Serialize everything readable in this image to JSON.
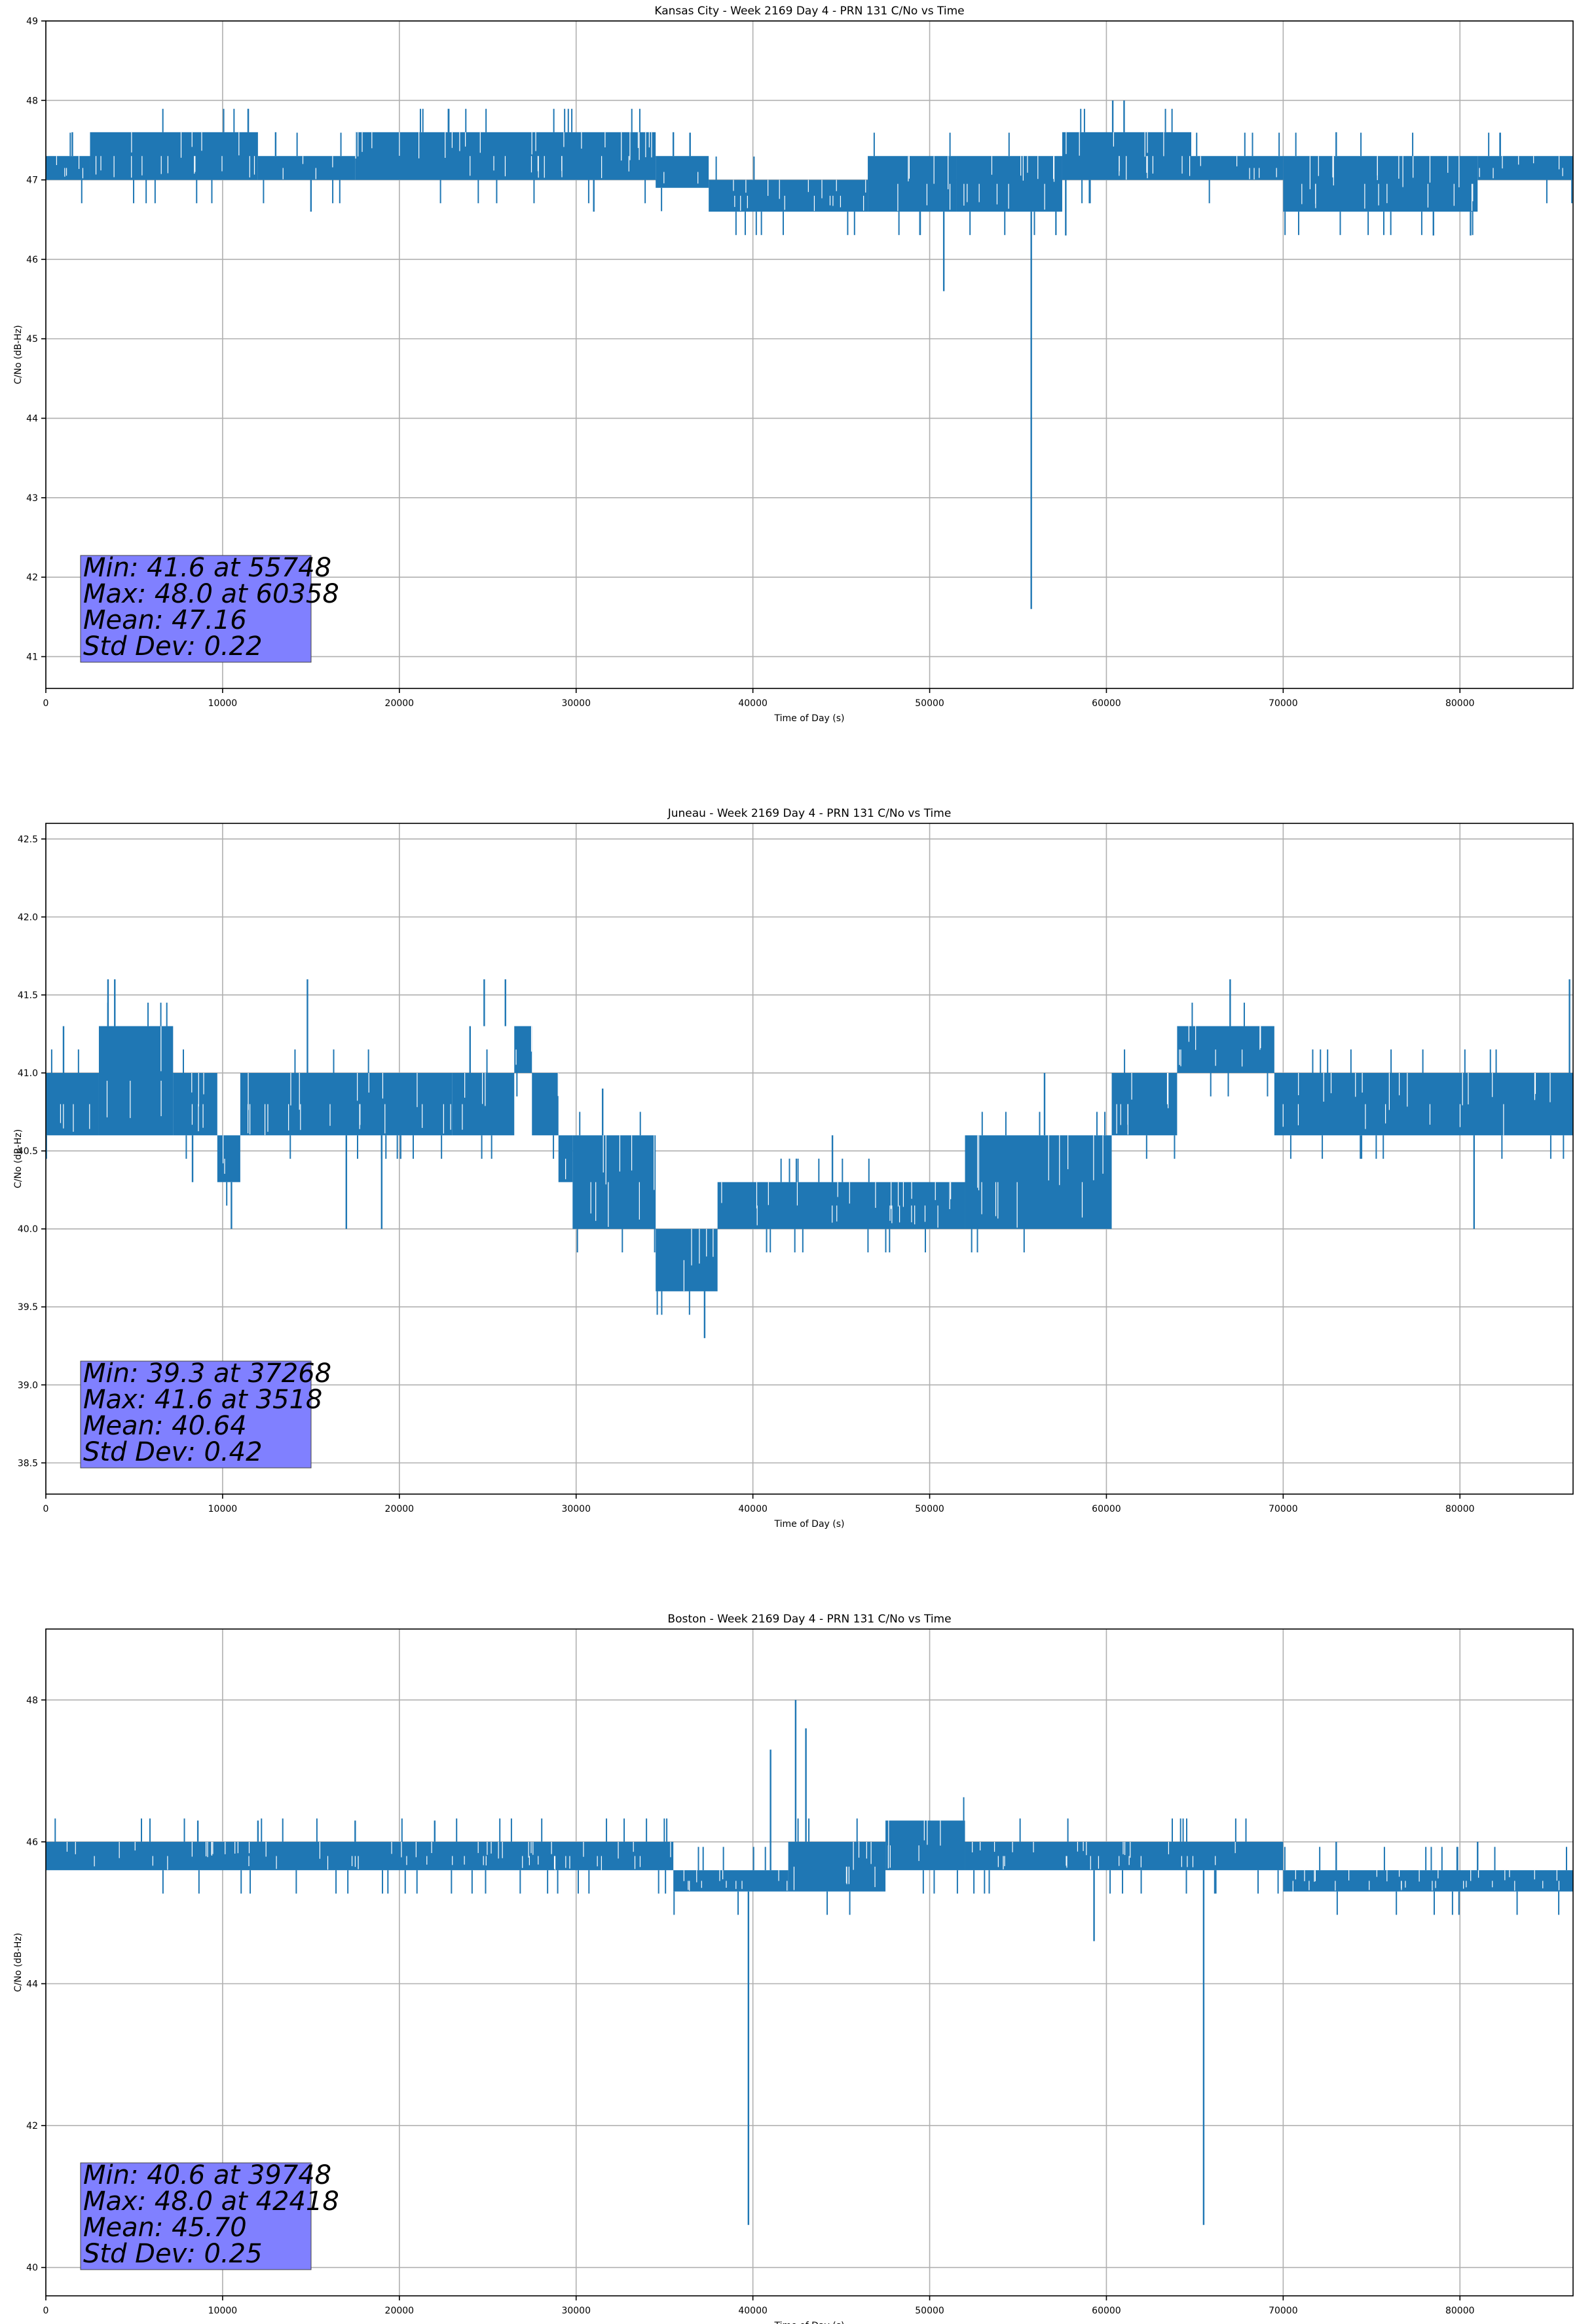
{
  "chart_data": [
    {
      "type": "line",
      "title": "Kansas City - Week 2169 Day 4 - PRN 131 C/No vs Time",
      "xlabel": "Time of Day (s)",
      "ylabel": "C/No (dB-Hz)",
      "xlim": [
        0,
        86400
      ],
      "ylim": [
        40.6,
        49
      ],
      "xticks": [
        0,
        10000,
        20000,
        30000,
        40000,
        50000,
        60000,
        70000,
        80000
      ],
      "yticks": [
        41,
        42,
        43,
        44,
        45,
        46,
        47,
        48,
        49
      ],
      "grid": true,
      "series_color": "#1f77b4",
      "stats_lines": [
        "Min: 41.6 at 55748",
        "Max: 48.0 at 60358",
        "Mean: 47.16",
        "Std Dev: 0.22"
      ],
      "stats_placement": "bottom-left",
      "bands": [
        {
          "x": [
            0,
            2500
          ],
          "range": [
            47.0,
            47.3
          ],
          "noise": [
            [
              1500,
              47.6
            ]
          ]
        },
        {
          "x": [
            2500,
            12000
          ],
          "range": [
            47.0,
            47.6
          ]
        },
        {
          "x": [
            12000,
            17500
          ],
          "range": [
            47.0,
            47.3
          ],
          "noise": [
            [
              15000,
              46.6
            ],
            [
              13000,
              47.6
            ]
          ]
        },
        {
          "x": [
            17500,
            34500
          ],
          "range": [
            47.0,
            47.6
          ],
          "noise": [
            [
              31000,
              46.6
            ]
          ]
        },
        {
          "x": [
            34500,
            37500
          ],
          "range": [
            46.9,
            47.3
          ],
          "noise": [
            [
              35500,
              47.6
            ]
          ]
        },
        {
          "x": [
            37500,
            46500
          ],
          "range": [
            46.6,
            47.0
          ]
        },
        {
          "x": [
            46500,
            51500
          ],
          "range": [
            46.6,
            47.3
          ],
          "noise": [
            [
              50800,
              45.6
            ]
          ]
        },
        {
          "x": [
            51500,
            57500
          ],
          "range": [
            46.6,
            47.3
          ],
          "noise": [
            [
              55748,
              41.6
            ]
          ]
        },
        {
          "x": [
            57500,
            64800
          ],
          "range": [
            47.0,
            47.6
          ],
          "noise": [
            [
              60358,
              48.0
            ],
            [
              61000,
              48.0
            ],
            [
              57700,
              46.3
            ]
          ]
        },
        {
          "x": [
            64800,
            70000
          ],
          "range": [
            47.0,
            47.3
          ]
        },
        {
          "x": [
            70000,
            81000
          ],
          "range": [
            46.6,
            47.3
          ],
          "noise": [
            [
              78500,
              46.3
            ],
            [
              80600,
              46.3
            ],
            [
              73000,
              47.6
            ]
          ]
        },
        {
          "x": [
            81000,
            86400
          ],
          "range": [
            47.0,
            47.3
          ]
        }
      ]
    },
    {
      "type": "line",
      "title": "Juneau - Week 2169 Day 4 - PRN 131 C/No vs Time",
      "xlabel": "Time of Day (s)",
      "ylabel": "C/No (dB-Hz)",
      "xlim": [
        0,
        86400
      ],
      "ylim": [
        38.3,
        42.6
      ],
      "xticks": [
        0,
        10000,
        20000,
        30000,
        40000,
        50000,
        60000,
        70000,
        80000
      ],
      "yticks": [
        38.5,
        39.0,
        39.5,
        40.0,
        40.5,
        41.0,
        41.5,
        42.0,
        42.5
      ],
      "grid": true,
      "series_color": "#1f77b4",
      "stats_lines": [
        "Min: 39.3 at 37268",
        "Max: 41.6 at 3518",
        "Mean: 40.64",
        "Std Dev: 0.42"
      ],
      "stats_placement": "bottom-left",
      "bands": [
        {
          "x": [
            0,
            3000
          ],
          "range": [
            40.6,
            41.0
          ],
          "noise": [
            [
              1000,
              41.3
            ]
          ]
        },
        {
          "x": [
            3000,
            7200
          ],
          "range": [
            40.6,
            41.3
          ],
          "noise": [
            [
              3518,
              41.6
            ],
            [
              3900,
              41.6
            ]
          ]
        },
        {
          "x": [
            7200,
            9700
          ],
          "range": [
            40.6,
            41.0
          ],
          "noise": [
            [
              8300,
              40.3
            ]
          ]
        },
        {
          "x": [
            9700,
            11000
          ],
          "range": [
            40.3,
            40.6
          ],
          "noise": [
            [
              10500,
              40.0
            ]
          ]
        },
        {
          "x": [
            11000,
            23000
          ],
          "range": [
            40.6,
            41.0
          ],
          "noise": [
            [
              14800,
              41.6
            ],
            [
              17000,
              40.0
            ],
            [
              19000,
              40.0
            ]
          ]
        },
        {
          "x": [
            23000,
            26500
          ],
          "range": [
            40.6,
            41.0
          ],
          "noise": [
            [
              24000,
              41.3
            ]
          ]
        },
        {
          "x": [
            26500,
            27500
          ],
          "range": [
            41.0,
            41.3
          ],
          "noise": [
            [
              24800,
              41.6
            ],
            [
              26000,
              41.6
            ]
          ]
        },
        {
          "x": [
            27500,
            29000
          ],
          "range": [
            40.6,
            41.0
          ]
        },
        {
          "x": [
            29000,
            29800
          ],
          "range": [
            40.3,
            40.6
          ]
        },
        {
          "x": [
            29800,
            34500
          ],
          "range": [
            40.0,
            40.6
          ],
          "noise": [
            [
              31500,
              40.9
            ]
          ]
        },
        {
          "x": [
            34500,
            38000
          ],
          "range": [
            39.6,
            40.0
          ],
          "noise": [
            [
              37268,
              39.3
            ]
          ]
        },
        {
          "x": [
            38000,
            52000
          ],
          "range": [
            40.0,
            40.3
          ],
          "noise": [
            [
              44500,
              40.6
            ]
          ]
        },
        {
          "x": [
            52000,
            60300
          ],
          "range": [
            40.0,
            40.6
          ],
          "noise": [
            [
              56500,
              41.0
            ]
          ]
        },
        {
          "x": [
            60300,
            64000
          ],
          "range": [
            40.6,
            41.0
          ]
        },
        {
          "x": [
            64000,
            69500
          ],
          "range": [
            41.0,
            41.3
          ],
          "noise": [
            [
              67000,
              41.6
            ]
          ]
        },
        {
          "x": [
            69500,
            86400
          ],
          "range": [
            40.6,
            41.0
          ],
          "noise": [
            [
              80800,
              40.0
            ],
            [
              86200,
              41.6
            ]
          ]
        }
      ]
    },
    {
      "type": "line",
      "title": "Boston - Week 2169 Day 4 - PRN 131 C/No vs Time",
      "xlabel": "Time of Day (s)",
      "ylabel": "C/No (dB-Hz)",
      "xlim": [
        0,
        86400
      ],
      "ylim": [
        39.6,
        49
      ],
      "xticks": [
        0,
        10000,
        20000,
        30000,
        40000,
        50000,
        60000,
        70000,
        80000
      ],
      "yticks": [
        40,
        42,
        44,
        46,
        48
      ],
      "grid": true,
      "series_color": "#1f77b4",
      "stats_lines": [
        "Min: 40.6 at 39748",
        "Max: 48.0 at 42418",
        "Mean: 45.70",
        "Std Dev: 0.25"
      ],
      "stats_placement": "bottom-left",
      "bands": [
        {
          "x": [
            0,
            35500
          ],
          "range": [
            45.6,
            46.0
          ],
          "noise": [
            [
              8600,
              46.3
            ],
            [
              12000,
              46.3
            ],
            [
              17500,
              46.3
            ],
            [
              22000,
              46.3
            ]
          ]
        },
        {
          "x": [
            35500,
            42000
          ],
          "range": [
            45.3,
            45.6
          ],
          "noise": [
            [
              39748,
              40.6
            ],
            [
              41000,
              47.3
            ]
          ]
        },
        {
          "x": [
            42000,
            47500
          ],
          "range": [
            45.3,
            46.0
          ],
          "noise": [
            [
              42418,
              48.0
            ],
            [
              43000,
              47.6
            ]
          ]
        },
        {
          "x": [
            47500,
            52000
          ],
          "range": [
            45.6,
            46.3
          ]
        },
        {
          "x": [
            52000,
            70000
          ],
          "range": [
            45.6,
            46.0
          ],
          "noise": [
            [
              59300,
              44.6
            ],
            [
              65500,
              40.6
            ]
          ]
        },
        {
          "x": [
            70000,
            86400
          ],
          "range": [
            45.3,
            45.6
          ],
          "noise": [
            [
              73000,
              46.0
            ],
            [
              81000,
              46.0
            ]
          ]
        }
      ]
    }
  ]
}
